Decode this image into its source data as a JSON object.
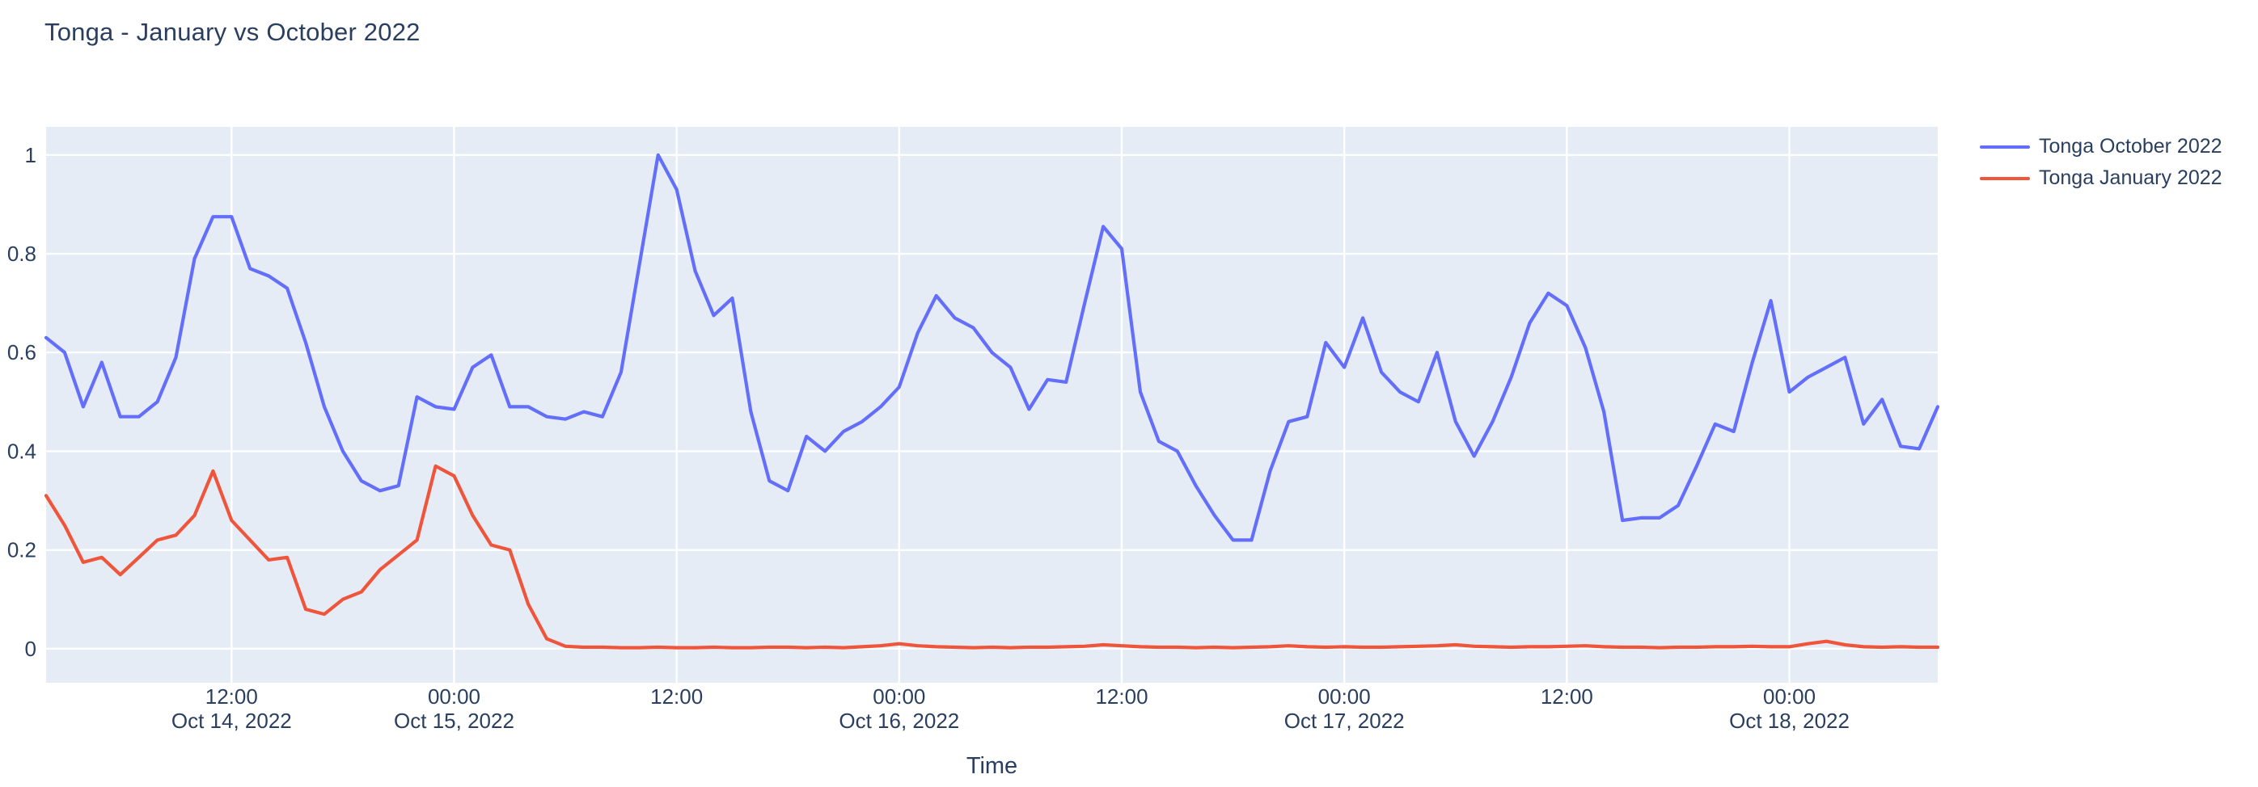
{
  "title": "Tonga - January vs October 2022",
  "colors": {
    "background": "#ffffff",
    "plot_background": "#E5ECF6",
    "grid": "#ffffff",
    "text": "#2a3f5f",
    "october_line": "#636EFA",
    "january_line": "#EF553B"
  },
  "legend": {
    "position": "right",
    "items": [
      {
        "label": "Tonga October 2022",
        "color": "#636EFA"
      },
      {
        "label": "Tonga January 2022",
        "color": "#EF553B"
      }
    ]
  },
  "chart_data": {
    "type": "line",
    "title": "Tonga - January vs October 2022",
    "xlabel": "Time",
    "ylabel": "",
    "x_start": "Oct 14, 2022 02:00",
    "x_step": "1 hour",
    "x_end": "Oct 18, 2022 08:00",
    "ylim": [
      -0.069,
      1.057
    ],
    "grid": true,
    "legend_position": "right",
    "y_ticks": [
      {
        "v": 0,
        "label": "0"
      },
      {
        "v": 0.2,
        "label": "0.2"
      },
      {
        "v": 0.4,
        "label": "0.4"
      },
      {
        "v": 0.6,
        "label": "0.6"
      },
      {
        "v": 0.8,
        "label": "0.8"
      },
      {
        "v": 1,
        "label": "1"
      }
    ],
    "x_ticks": [
      {
        "h": 10,
        "line1": "12:00",
        "line2": "Oct 14, 2022"
      },
      {
        "h": 22,
        "line1": "00:00",
        "line2": "Oct 15, 2022"
      },
      {
        "h": 34,
        "line1": "12:00",
        "line2": ""
      },
      {
        "h": 46,
        "line1": "00:00",
        "line2": "Oct 16, 2022"
      },
      {
        "h": 58,
        "line1": "12:00",
        "line2": ""
      },
      {
        "h": 70,
        "line1": "00:00",
        "line2": "Oct 17, 2022"
      },
      {
        "h": 82,
        "line1": "12:00",
        "line2": ""
      },
      {
        "h": 94,
        "line1": "00:00",
        "line2": "Oct 18, 2022"
      }
    ],
    "series": [
      {
        "name": "Tonga October 2022",
        "color": "#636EFA",
        "values": [
          0.63,
          0.6,
          0.49,
          0.58,
          0.47,
          0.47,
          0.5,
          0.59,
          0.79,
          0.875,
          0.875,
          0.77,
          0.755,
          0.73,
          0.62,
          0.49,
          0.4,
          0.34,
          0.32,
          0.33,
          0.51,
          0.49,
          0.485,
          0.57,
          0.595,
          0.49,
          0.49,
          0.47,
          0.465,
          0.48,
          0.47,
          0.56,
          0.78,
          1.0,
          0.93,
          0.765,
          0.675,
          0.71,
          0.48,
          0.34,
          0.32,
          0.43,
          0.4,
          0.44,
          0.46,
          0.49,
          0.53,
          0.64,
          0.715,
          0.67,
          0.65,
          0.6,
          0.57,
          0.485,
          0.545,
          0.54,
          0.7,
          0.855,
          0.81,
          0.52,
          0.42,
          0.4,
          0.33,
          0.27,
          0.22,
          0.22,
          0.36,
          0.46,
          0.47,
          0.62,
          0.57,
          0.67,
          0.56,
          0.52,
          0.5,
          0.6,
          0.46,
          0.39,
          0.46,
          0.55,
          0.66,
          0.72,
          0.695,
          0.61,
          0.48,
          0.26,
          0.265,
          0.265,
          0.29,
          0.37,
          0.455,
          0.44,
          0.58,
          0.705,
          0.52,
          0.55,
          0.57,
          0.59,
          0.455,
          0.505,
          0.41,
          0.405,
          0.49
        ]
      },
      {
        "name": "Tonga January 2022",
        "color": "#EF553B",
        "values": [
          0.31,
          0.25,
          0.175,
          0.185,
          0.15,
          0.185,
          0.22,
          0.23,
          0.27,
          0.36,
          0.26,
          0.22,
          0.18,
          0.185,
          0.08,
          0.07,
          0.1,
          0.115,
          0.16,
          0.19,
          0.22,
          0.37,
          0.35,
          0.27,
          0.21,
          0.2,
          0.09,
          0.02,
          0.005,
          0.003,
          0.003,
          0.002,
          0.002,
          0.003,
          0.002,
          0.002,
          0.003,
          0.002,
          0.002,
          0.003,
          0.003,
          0.002,
          0.003,
          0.002,
          0.004,
          0.006,
          0.01,
          0.006,
          0.004,
          0.003,
          0.002,
          0.003,
          0.002,
          0.003,
          0.003,
          0.004,
          0.005,
          0.008,
          0.006,
          0.004,
          0.003,
          0.003,
          0.002,
          0.003,
          0.002,
          0.003,
          0.004,
          0.006,
          0.004,
          0.003,
          0.004,
          0.003,
          0.003,
          0.004,
          0.005,
          0.006,
          0.008,
          0.005,
          0.004,
          0.003,
          0.004,
          0.004,
          0.005,
          0.006,
          0.004,
          0.003,
          0.003,
          0.002,
          0.003,
          0.003,
          0.004,
          0.004,
          0.005,
          0.004,
          0.004,
          0.01,
          0.015,
          0.008,
          0.004,
          0.003,
          0.004,
          0.003,
          0.003
        ]
      }
    ]
  }
}
